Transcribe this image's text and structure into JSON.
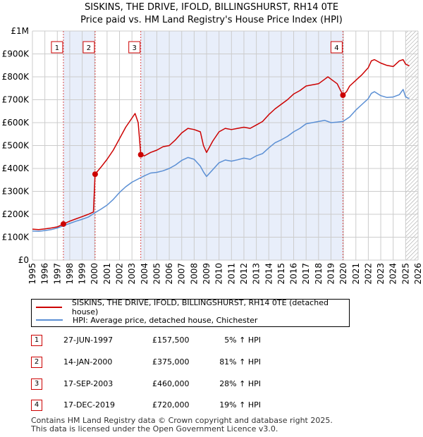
{
  "title_line1": "SISKINS, THE DRIVE, IFOLD, BILLINGSHURST, RH14 0TE",
  "title_line2": "Price paid vs. HM Land Registry's House Price Index (HPI)",
  "chart_data": {
    "type": "line",
    "title": "SISKINS, THE DRIVE, IFOLD, BILLINGSHURST, RH14 0TE — Price paid vs. HM Land Registry's House Price Index (HPI)",
    "xlabel": "",
    "ylabel": "",
    "xlim": [
      1995,
      2026
    ],
    "ylim": [
      0,
      1000000
    ],
    "yticks": [
      {
        "value": 0,
        "label": "£0"
      },
      {
        "value": 100000,
        "label": "£100K"
      },
      {
        "value": 200000,
        "label": "£200K"
      },
      {
        "value": 300000,
        "label": "£300K"
      },
      {
        "value": 400000,
        "label": "£400K"
      },
      {
        "value": 500000,
        "label": "£500K"
      },
      {
        "value": 600000,
        "label": "£600K"
      },
      {
        "value": 700000,
        "label": "£700K"
      },
      {
        "value": 800000,
        "label": "£800K"
      },
      {
        "value": 900000,
        "label": "£900K"
      },
      {
        "value": 1000000,
        "label": "£1M"
      }
    ],
    "xticks": [
      "1995",
      "1996",
      "1997",
      "1998",
      "1999",
      "2000",
      "2001",
      "2002",
      "2003",
      "2004",
      "2005",
      "2006",
      "2007",
      "2008",
      "2009",
      "2010",
      "2011",
      "2012",
      "2013",
      "2014",
      "2015",
      "2016",
      "2017",
      "2018",
      "2019",
      "2020",
      "2021",
      "2022",
      "2023",
      "2024",
      "2025",
      "2026"
    ],
    "shaded_periods": [
      [
        1997.49,
        2000.04
      ],
      [
        2003.71,
        2019.96
      ]
    ],
    "future_hatch_from": 2025.0,
    "series": [
      {
        "name": "SISKINS, THE DRIVE, IFOLD, BILLINGSHURST, RH14 0TE (detached house)",
        "color": "#cc0000",
        "points": [
          [
            1995.0,
            135000
          ],
          [
            1995.5,
            133000
          ],
          [
            1996.0,
            136000
          ],
          [
            1996.5,
            140000
          ],
          [
            1997.0,
            145000
          ],
          [
            1997.49,
            157500
          ],
          [
            1998.0,
            170000
          ],
          [
            1998.5,
            180000
          ],
          [
            1999.0,
            190000
          ],
          [
            1999.5,
            200000
          ],
          [
            1999.9,
            210000
          ],
          [
            2000.04,
            375000
          ],
          [
            2000.5,
            405000
          ],
          [
            2001.0,
            440000
          ],
          [
            2001.5,
            480000
          ],
          [
            2002.0,
            530000
          ],
          [
            2002.5,
            580000
          ],
          [
            2003.0,
            620000
          ],
          [
            2003.25,
            640000
          ],
          [
            2003.5,
            600000
          ],
          [
            2003.71,
            460000
          ],
          [
            2004.0,
            455000
          ],
          [
            2004.5,
            470000
          ],
          [
            2005.0,
            480000
          ],
          [
            2005.5,
            495000
          ],
          [
            2006.0,
            500000
          ],
          [
            2006.5,
            525000
          ],
          [
            2007.0,
            555000
          ],
          [
            2007.5,
            575000
          ],
          [
            2008.0,
            570000
          ],
          [
            2008.5,
            560000
          ],
          [
            2008.75,
            500000
          ],
          [
            2009.0,
            470000
          ],
          [
            2009.5,
            520000
          ],
          [
            2010.0,
            560000
          ],
          [
            2010.5,
            575000
          ],
          [
            2011.0,
            570000
          ],
          [
            2011.5,
            575000
          ],
          [
            2012.0,
            580000
          ],
          [
            2012.5,
            575000
          ],
          [
            2013.0,
            590000
          ],
          [
            2013.5,
            605000
          ],
          [
            2014.0,
            635000
          ],
          [
            2014.5,
            660000
          ],
          [
            2015.0,
            680000
          ],
          [
            2015.5,
            700000
          ],
          [
            2016.0,
            725000
          ],
          [
            2016.5,
            740000
          ],
          [
            2017.0,
            760000
          ],
          [
            2017.5,
            765000
          ],
          [
            2018.0,
            770000
          ],
          [
            2018.5,
            790000
          ],
          [
            2018.75,
            800000
          ],
          [
            2019.0,
            790000
          ],
          [
            2019.5,
            770000
          ],
          [
            2019.96,
            720000
          ],
          [
            2020.25,
            735000
          ],
          [
            2020.5,
            760000
          ],
          [
            2021.0,
            785000
          ],
          [
            2021.5,
            810000
          ],
          [
            2022.0,
            840000
          ],
          [
            2022.25,
            870000
          ],
          [
            2022.5,
            875000
          ],
          [
            2023.0,
            860000
          ],
          [
            2023.5,
            850000
          ],
          [
            2024.0,
            845000
          ],
          [
            2024.5,
            870000
          ],
          [
            2024.8,
            875000
          ],
          [
            2025.0,
            855000
          ],
          [
            2025.3,
            848000
          ]
        ]
      },
      {
        "name": "HPI: Average price, detached house, Chichester",
        "color": "#5b8fd4",
        "points": [
          [
            1995.0,
            127000
          ],
          [
            1995.5,
            126000
          ],
          [
            1996.0,
            129000
          ],
          [
            1996.5,
            133000
          ],
          [
            1997.0,
            140000
          ],
          [
            1997.49,
            150000
          ],
          [
            1998.0,
            160000
          ],
          [
            1998.5,
            170000
          ],
          [
            1999.0,
            178000
          ],
          [
            1999.5,
            188000
          ],
          [
            2000.04,
            207000
          ],
          [
            2000.5,
            222000
          ],
          [
            2001.0,
            240000
          ],
          [
            2001.5,
            265000
          ],
          [
            2002.0,
            295000
          ],
          [
            2002.5,
            320000
          ],
          [
            2003.0,
            340000
          ],
          [
            2003.71,
            360000
          ],
          [
            2004.0,
            368000
          ],
          [
            2004.5,
            380000
          ],
          [
            2005.0,
            383000
          ],
          [
            2005.5,
            390000
          ],
          [
            2006.0,
            400000
          ],
          [
            2006.5,
            415000
          ],
          [
            2007.0,
            435000
          ],
          [
            2007.5,
            448000
          ],
          [
            2008.0,
            440000
          ],
          [
            2008.5,
            410000
          ],
          [
            2008.75,
            385000
          ],
          [
            2009.0,
            365000
          ],
          [
            2009.5,
            395000
          ],
          [
            2010.0,
            425000
          ],
          [
            2010.5,
            437000
          ],
          [
            2011.0,
            432000
          ],
          [
            2011.5,
            438000
          ],
          [
            2012.0,
            445000
          ],
          [
            2012.5,
            440000
          ],
          [
            2013.0,
            455000
          ],
          [
            2013.5,
            465000
          ],
          [
            2014.0,
            490000
          ],
          [
            2014.5,
            512000
          ],
          [
            2015.0,
            525000
          ],
          [
            2015.5,
            540000
          ],
          [
            2016.0,
            560000
          ],
          [
            2016.5,
            575000
          ],
          [
            2017.0,
            595000
          ],
          [
            2017.5,
            600000
          ],
          [
            2018.0,
            605000
          ],
          [
            2018.5,
            610000
          ],
          [
            2019.0,
            600000
          ],
          [
            2019.5,
            602000
          ],
          [
            2019.96,
            605000
          ],
          [
            2020.5,
            625000
          ],
          [
            2021.0,
            655000
          ],
          [
            2021.5,
            680000
          ],
          [
            2022.0,
            705000
          ],
          [
            2022.25,
            728000
          ],
          [
            2022.5,
            735000
          ],
          [
            2023.0,
            718000
          ],
          [
            2023.5,
            710000
          ],
          [
            2024.0,
            712000
          ],
          [
            2024.5,
            722000
          ],
          [
            2024.8,
            745000
          ],
          [
            2025.0,
            712000
          ],
          [
            2025.3,
            705000
          ]
        ]
      }
    ],
    "sales": [
      {
        "label": "1",
        "date": "27-JUN-1997",
        "price": "£157,500",
        "hpi": "5% ↑ HPI",
        "x": 1997.49,
        "value": 157500
      },
      {
        "label": "2",
        "date": "14-JAN-2000",
        "price": "£375,000",
        "hpi": "81% ↑ HPI",
        "x": 2000.04,
        "value": 375000
      },
      {
        "label": "3",
        "date": "17-SEP-2003",
        "price": "£460,000",
        "hpi": "28% ↑ HPI",
        "x": 2003.71,
        "value": 460000
      },
      {
        "label": "4",
        "date": "17-DEC-2019",
        "price": "£720,000",
        "hpi": "19% ↑ HPI",
        "x": 2019.96,
        "value": 720000
      }
    ]
  },
  "legend": {
    "property_label": "SISKINS, THE DRIVE, IFOLD, BILLINGSHURST, RH14 0TE (detached house)",
    "hpi_label": "HPI: Average price, detached house, Chichester"
  },
  "footer": {
    "line1": "Contains HM Land Registry data © Crown copyright and database right 2025.",
    "line2": "This data is licensed under the Open Government Licence v3.0."
  },
  "colors": {
    "property": "#cc0000",
    "hpi": "#5b8fd4",
    "shade": "#e8eefa",
    "grid": "#cccccc"
  }
}
